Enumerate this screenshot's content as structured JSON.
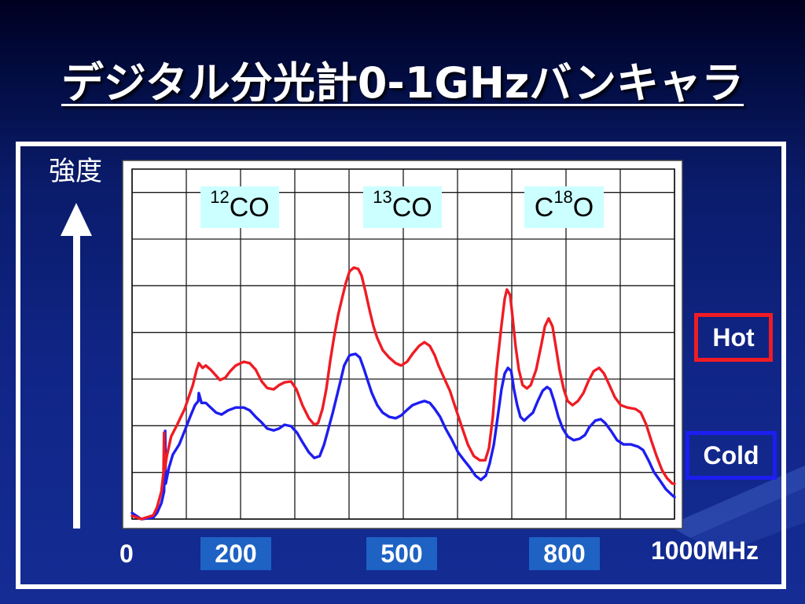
{
  "theme": {
    "label_box": "#ccffff",
    "tick_box": "#1e62c4"
  },
  "chart_data": {
    "type": "line",
    "title": "デジタル分光計0-1GHzバンキャラ",
    "xlabel": "",
    "ylabel": "強度",
    "xlim": [
      0,
      1000
    ],
    "ylim": [
      0,
      7.5
    ],
    "grid": true,
    "x_grid_step": 100,
    "y_grid_step": 1,
    "legend_position": "right",
    "x_ticks": [
      {
        "value": 0,
        "label": "0"
      },
      {
        "value": 200,
        "label": "200"
      },
      {
        "value": 500,
        "label": "500"
      },
      {
        "value": 800,
        "label": "800"
      },
      {
        "value": 1000,
        "label": "1000MHz"
      }
    ],
    "annotations": [
      {
        "sup": "12",
        "post": "CO"
      },
      {
        "sup": "13",
        "post": "CO"
      },
      {
        "pre": "C",
        "sup": "18",
        "post": "O"
      }
    ],
    "series": [
      {
        "name": "Hot",
        "color": "#ef1c24",
        "x": [
          0,
          17,
          39,
          46,
          54,
          58,
          59,
          60,
          64,
          72,
          83,
          97,
          112,
          119,
          123,
          130,
          136,
          145,
          155,
          162,
          172,
          181,
          191,
          206,
          217,
          228,
          239,
          249,
          261,
          271,
          281,
          293,
          303,
          314,
          326,
          336,
          343,
          351,
          358,
          365,
          372,
          380,
          387,
          394,
          401,
          409,
          417,
          423,
          430,
          438,
          445,
          452,
          462,
          474,
          486,
          496,
          507,
          517,
          529,
          539,
          549,
          558,
          565,
          575,
          586,
          597,
          609,
          619,
          630,
          641,
          651,
          658,
          665,
          672,
          680,
          687,
          691,
          697,
          701,
          707,
          713,
          720,
          728,
          735,
          745,
          754,
          761,
          768,
          775,
          781,
          788,
          796,
          803,
          812,
          822,
          832,
          841,
          851,
          861,
          870,
          880,
          890,
          901,
          913,
          928,
          938,
          948,
          957,
          967,
          977,
          986,
          996,
          1000
        ],
        "y": [
          0.07,
          0.0,
          0.08,
          0.25,
          0.59,
          1.0,
          1.85,
          1.05,
          1.35,
          1.77,
          2.02,
          2.36,
          2.87,
          3.2,
          3.34,
          3.24,
          3.29,
          3.2,
          3.07,
          2.98,
          3.03,
          3.17,
          3.29,
          3.37,
          3.34,
          3.2,
          2.95,
          2.81,
          2.78,
          2.87,
          2.93,
          2.95,
          2.78,
          2.44,
          2.16,
          2.02,
          2.06,
          2.36,
          2.78,
          3.37,
          3.88,
          4.38,
          4.72,
          5.06,
          5.31,
          5.39,
          5.36,
          5.22,
          4.89,
          4.47,
          4.13,
          3.88,
          3.62,
          3.46,
          3.34,
          3.29,
          3.37,
          3.54,
          3.71,
          3.79,
          3.71,
          3.51,
          3.29,
          3.03,
          2.75,
          2.36,
          1.94,
          1.6,
          1.35,
          1.26,
          1.26,
          1.52,
          2.19,
          3.2,
          4.05,
          4.72,
          4.92,
          4.8,
          4.38,
          3.71,
          3.2,
          2.87,
          2.8,
          2.87,
          3.2,
          3.71,
          4.13,
          4.3,
          4.13,
          3.71,
          3.2,
          2.78,
          2.53,
          2.44,
          2.53,
          2.7,
          2.95,
          3.17,
          3.24,
          3.12,
          2.87,
          2.61,
          2.44,
          2.39,
          2.36,
          2.28,
          2.02,
          1.69,
          1.35,
          1.05,
          0.88,
          0.76,
          0.76
        ]
      },
      {
        "name": "Cold",
        "color": "#1d1df0",
        "x": [
          0,
          17,
          39,
          46,
          54,
          59,
          61,
          62,
          68,
          75,
          87,
          97,
          107,
          116,
          122,
          123,
          128,
          136,
          145,
          155,
          165,
          177,
          191,
          206,
          217,
          228,
          239,
          249,
          261,
          271,
          281,
          293,
          304,
          314,
          326,
          336,
          346,
          354,
          362,
          370,
          377,
          384,
          391,
          401,
          412,
          420,
          428,
          435,
          442,
          452,
          462,
          474,
          486,
          496,
          506,
          517,
          528,
          539,
          549,
          558,
          568,
          578,
          590,
          601,
          612,
          623,
          633,
          643,
          652,
          659,
          667,
          674,
          681,
          687,
          693,
          699,
          704,
          710,
          716,
          723,
          730,
          739,
          748,
          757,
          765,
          771,
          778,
          786,
          794,
          803,
          814,
          825,
          835,
          843,
          854,
          864,
          872,
          883,
          894,
          906,
          920,
          933,
          942,
          952,
          962,
          974,
          984,
          996,
          1000
        ],
        "y": [
          0.13,
          0.0,
          0.03,
          0.13,
          0.34,
          0.59,
          1.89,
          0.76,
          1.1,
          1.38,
          1.6,
          1.89,
          2.19,
          2.44,
          2.53,
          2.7,
          2.49,
          2.49,
          2.39,
          2.28,
          2.24,
          2.33,
          2.39,
          2.39,
          2.33,
          2.19,
          2.07,
          1.94,
          1.9,
          1.94,
          2.02,
          1.99,
          1.85,
          1.65,
          1.43,
          1.31,
          1.35,
          1.6,
          1.94,
          2.28,
          2.61,
          2.95,
          3.29,
          3.51,
          3.54,
          3.46,
          3.2,
          2.95,
          2.7,
          2.44,
          2.28,
          2.19,
          2.16,
          2.22,
          2.33,
          2.44,
          2.49,
          2.53,
          2.49,
          2.36,
          2.19,
          1.94,
          1.69,
          1.43,
          1.26,
          1.1,
          0.93,
          0.84,
          0.93,
          1.18,
          1.6,
          2.19,
          2.78,
          3.12,
          3.24,
          3.17,
          2.78,
          2.44,
          2.19,
          2.11,
          2.19,
          2.28,
          2.53,
          2.75,
          2.83,
          2.78,
          2.53,
          2.19,
          1.94,
          1.77,
          1.69,
          1.72,
          1.8,
          1.97,
          2.11,
          2.14,
          2.06,
          1.89,
          1.69,
          1.6,
          1.6,
          1.55,
          1.48,
          1.26,
          1.01,
          0.81,
          0.64,
          0.51,
          0.47
        ]
      }
    ]
  }
}
